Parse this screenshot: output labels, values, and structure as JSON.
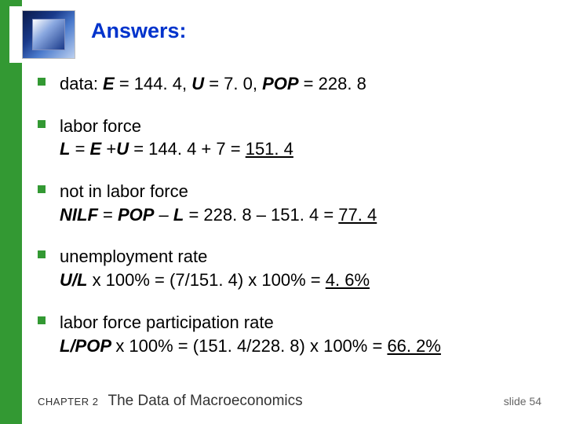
{
  "accent_green": "#339933",
  "title_color": "#0033cc",
  "title": "Answers:",
  "bullets": {
    "b1": {
      "pre": "data:  ",
      "e_lbl": "E",
      "e_eq": " = 144. 4,  ",
      "u_lbl": "U",
      "u_eq": " = 7. 0,  ",
      "p_lbl": "POP",
      "p_eq": " = 228. 8"
    },
    "b2": {
      "l1": "labor force",
      "l2a": "L",
      "l2b": " = ",
      "l2c": "E",
      "l2d": " +",
      "l2e": "U",
      "l2f": " = 144. 4 + 7 = ",
      "l2g": "151. 4"
    },
    "b3": {
      "l1": "not in labor force",
      "l2a": "NILF",
      "l2b": " = ",
      "l2c": "POP",
      "l2d": " – ",
      "l2e": "L",
      "l2f": " = 228. 8 – 151. 4 = ",
      "l2g": "77. 4"
    },
    "b4": {
      "l1": "unemployment rate",
      "l2a": "U/L",
      "l2b": " x 100% = (7/151. 4) x 100% = ",
      "l2c": "4. 6%"
    },
    "b5": {
      "l1": "labor force participation rate",
      "l2a": "L/POP ",
      "l2b": " x 100% = (151. 4/228. 8) x 100% = ",
      "l2c": "66. 2%"
    }
  },
  "footer": {
    "chapter": "CHAPTER 2",
    "subtitle": "The Data of Macroeconomics",
    "slide": "slide 54"
  }
}
